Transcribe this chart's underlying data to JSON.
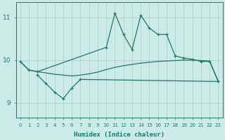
{
  "x": [
    0,
    1,
    2,
    3,
    4,
    5,
    6,
    7,
    8,
    9,
    10,
    11,
    12,
    13,
    14,
    15,
    16,
    17,
    18,
    19,
    20,
    21,
    22,
    23
  ],
  "line_upper": [
    9.97,
    9.77,
    9.73,
    null,
    null,
    null,
    null,
    null,
    null,
    null,
    10.3,
    11.1,
    10.6,
    10.25,
    11.05,
    10.75,
    10.6,
    10.6,
    10.1,
    10.05,
    10.02,
    9.97,
    9.97,
    9.5
  ],
  "line_lower": [
    null,
    null,
    9.65,
    9.45,
    9.25,
    9.1,
    9.35,
    9.55,
    null,
    null,
    null,
    null,
    null,
    null,
    null,
    null,
    null,
    null,
    null,
    null,
    null,
    null,
    null,
    9.5
  ],
  "line_avg": [
    9.97,
    9.77,
    9.73,
    9.7,
    9.67,
    9.65,
    9.63,
    9.65,
    9.68,
    9.72,
    9.78,
    9.83,
    9.87,
    9.9,
    9.93,
    9.95,
    9.97,
    9.98,
    9.99,
    10.0,
    10.0,
    9.99,
    9.98,
    9.5
  ],
  "color": "#1a7a6a",
  "bg_color": "#cceae6",
  "grid_color": "#b0c8c4",
  "xlabel": "Humidex (Indice chaleur)",
  "yticks": [
    9,
    10,
    11
  ],
  "ylim": [
    8.65,
    11.35
  ],
  "xlim": [
    -0.5,
    23.5
  ],
  "xticks": [
    0,
    1,
    2,
    3,
    4,
    5,
    6,
    7,
    8,
    9,
    10,
    11,
    12,
    13,
    14,
    15,
    16,
    17,
    18,
    19,
    20,
    21,
    22,
    23
  ]
}
